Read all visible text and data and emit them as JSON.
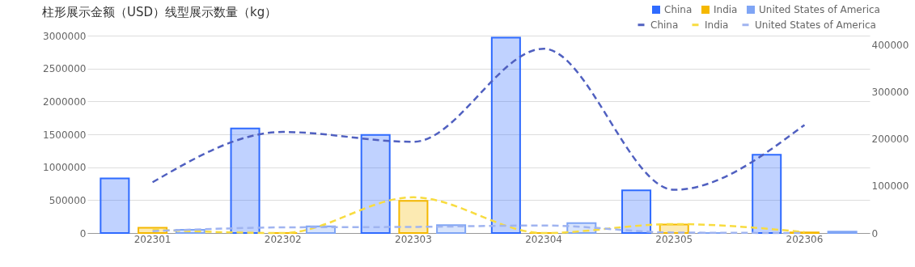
{
  "chart_data": {
    "type": "bar",
    "title": "柱形展示金额（USD）线型展示数量（kg）",
    "categories": [
      "202301",
      "202302",
      "202303",
      "202304",
      "202305",
      "202306"
    ],
    "series": [
      {
        "name": "China",
        "color": "#2f6bff",
        "values": [
          830000,
          1590000,
          1490000,
          2970000,
          650000,
          1190000
        ]
      },
      {
        "name": "India",
        "color": "#f5b800",
        "values": [
          80000,
          0,
          490000,
          0,
          130000,
          10000
        ]
      },
      {
        "name": "United States of America",
        "color": "#7fa5f5",
        "values": [
          50000,
          100000,
          120000,
          150000,
          0,
          20000
        ]
      },
      {
        "name": "China",
        "type": "line",
        "axis": "y2",
        "line_style": "dashed",
        "color": "#5060c0",
        "values": [
          108000,
          215000,
          194000,
          392000,
          92000,
          230000
        ]
      },
      {
        "name": "India",
        "type": "line",
        "axis": "y2",
        "line_style": "dashed",
        "color": "#f8dc40",
        "values": [
          7000,
          0,
          76000,
          0,
          19000,
          2000
        ]
      },
      {
        "name": "United States of America",
        "type": "line",
        "axis": "y2",
        "line_style": "dashed",
        "color": "#a0b4f0",
        "values": [
          4000,
          12000,
          13000,
          16000,
          1000,
          0
        ]
      }
    ],
    "ylim": [
      0,
      3000000
    ],
    "yticks": [
      0,
      500000,
      1000000,
      1500000,
      2000000,
      2500000,
      3000000
    ],
    "y2lim": [
      0,
      420000
    ],
    "y2ticks": [
      0,
      100000,
      200000,
      300000,
      400000
    ],
    "grid": "y",
    "legend": "top right",
    "marker": "none"
  }
}
